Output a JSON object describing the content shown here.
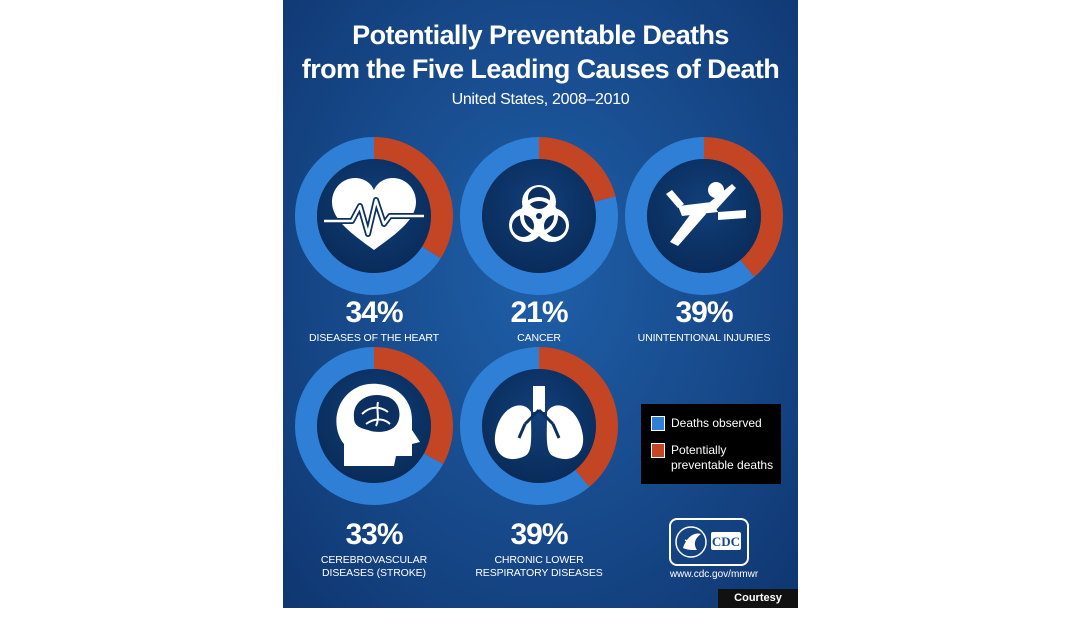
{
  "header": {
    "title_line1": "Potentially Preventable Deaths",
    "title_line2": "from the Five Leading Causes of Death",
    "subtitle": "United States, 2008–2010"
  },
  "chart_data": {
    "type": "pie",
    "title": "Potentially Preventable Deaths from the Five Leading Causes of Death",
    "subtitle": "United States, 2008–2010",
    "series": [
      {
        "name": "Deaths observed",
        "color": "#2f7fd6"
      },
      {
        "name": "Potentially preventable deaths",
        "color": "#c44524"
      }
    ],
    "items": [
      {
        "label": "DISEASES OF THE HEART",
        "percent_label": "34%",
        "preventable": 34,
        "icon": "heart-pulse-icon"
      },
      {
        "label": "CANCER",
        "percent_label": "21%",
        "preventable": 21,
        "icon": "biohazard-icon"
      },
      {
        "label": "UNINTENTIONAL INJURIES",
        "percent_label": "39%",
        "preventable": 39,
        "icon": "falling-person-icon"
      },
      {
        "label_lines": [
          "CEREBROVASCULAR",
          "DISEASES (STROKE)"
        ],
        "percent_label": "33%",
        "preventable": 33,
        "icon": "head-brain-icon"
      },
      {
        "label_lines": [
          "CHRONIC LOWER",
          "RESPIRATORY DISEASES"
        ],
        "percent_label": "39%",
        "preventable": 39,
        "icon": "lungs-icon"
      }
    ]
  },
  "legend": {
    "observed": "Deaths observed",
    "preventable_line1": "Potentially",
    "preventable_line2": "preventable deaths"
  },
  "footer": {
    "logo_text": "CDC",
    "url": "www.cdc.gov/mmwr"
  },
  "credit": "Courtesy Image"
}
